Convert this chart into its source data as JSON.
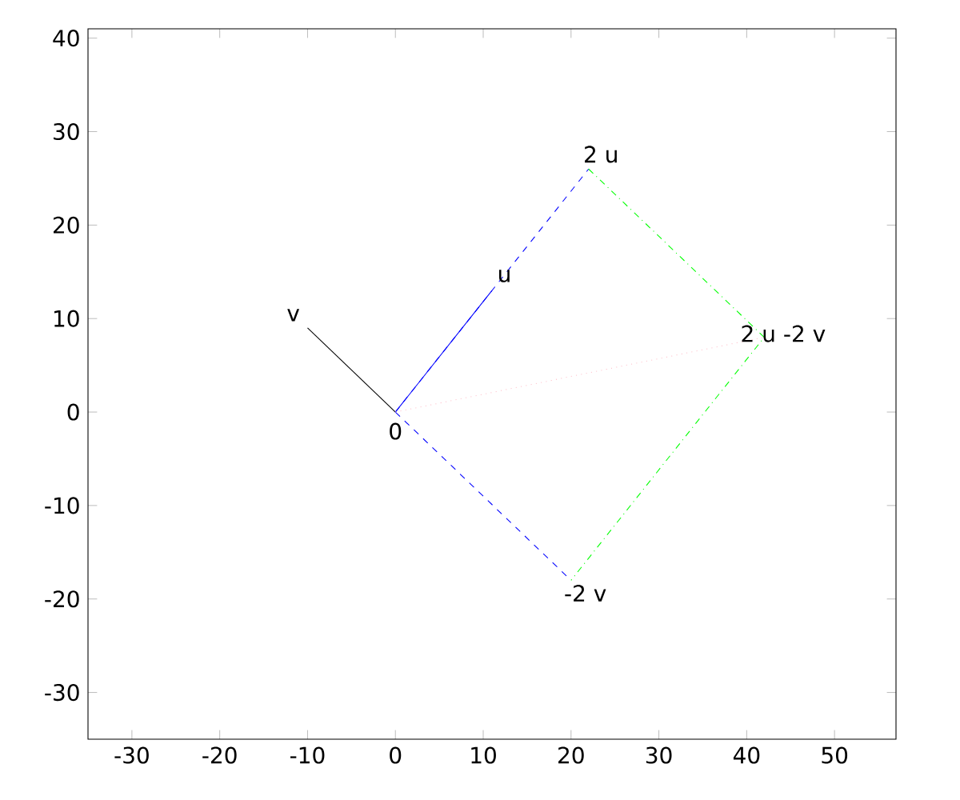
{
  "chart_data": {
    "type": "line",
    "xlim": [
      -35,
      57
    ],
    "ylim": [
      -35,
      41
    ],
    "xticks": [
      -30,
      -20,
      -10,
      0,
      10,
      20,
      30,
      40,
      50
    ],
    "yticks": [
      -30,
      -20,
      -10,
      0,
      10,
      20,
      30,
      40
    ],
    "grid": false,
    "marker": "none",
    "series": [
      {
        "color": "#000000",
        "line_style": "solid",
        "x": [
          0,
          -10
        ],
        "values": [
          0,
          9
        ]
      },
      {
        "color": "#0000ff",
        "line_style": "dashed",
        "x": [
          0,
          22
        ],
        "values": [
          0,
          26
        ]
      },
      {
        "color": "#0000ff",
        "line_style": "solid",
        "x": [
          0,
          11
        ],
        "values": [
          0,
          13
        ]
      },
      {
        "color": "#0000ff",
        "line_style": "dashed",
        "x": [
          0,
          20
        ],
        "values": [
          0,
          -18
        ]
      },
      {
        "color": "#00ff00",
        "line_style": "dashdot",
        "x": [
          22,
          42,
          20
        ],
        "values": [
          26,
          8,
          -18
        ]
      },
      {
        "color": "#ffc0cb",
        "line_style": "dotted",
        "x": [
          0,
          42
        ],
        "values": [
          0,
          8
        ]
      }
    ],
    "annotations": [
      {
        "text": "u",
        "x": 11,
        "y": 13
      },
      {
        "text": "v",
        "x": -10,
        "y": 9
      },
      {
        "text": "0",
        "x": 0,
        "y": 0
      },
      {
        "text": "2 u",
        "x": 22,
        "y": 26
      },
      {
        "text": "2 u -2 v",
        "x": 42,
        "y": 8
      },
      {
        "text": "-2 v",
        "x": 20,
        "y": -18
      }
    ]
  }
}
